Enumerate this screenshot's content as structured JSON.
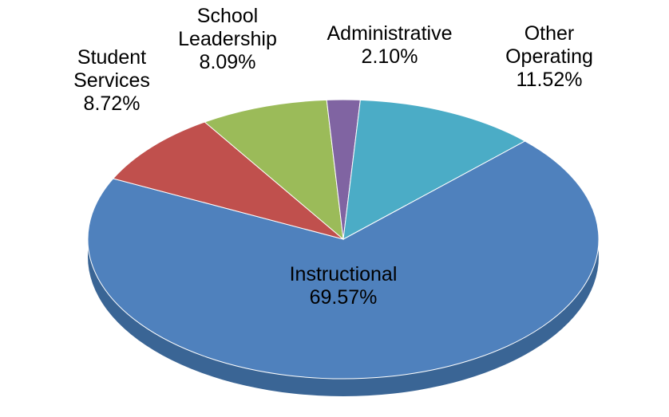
{
  "chart_data": {
    "type": "pie",
    "categories": [
      "Instructional",
      "Student Services",
      "School Leadership",
      "Administrative",
      "Other Operating"
    ],
    "values": [
      69.57,
      8.72,
      8.09,
      2.1,
      11.52
    ],
    "value_labels": [
      "69.57%",
      "8.72%",
      "8.09%",
      "2.10%",
      "11.52%"
    ],
    "colors": [
      "#4f81bd",
      "#c0504d",
      "#9bbb59",
      "#8064a2",
      "#4bacc6"
    ]
  }
}
